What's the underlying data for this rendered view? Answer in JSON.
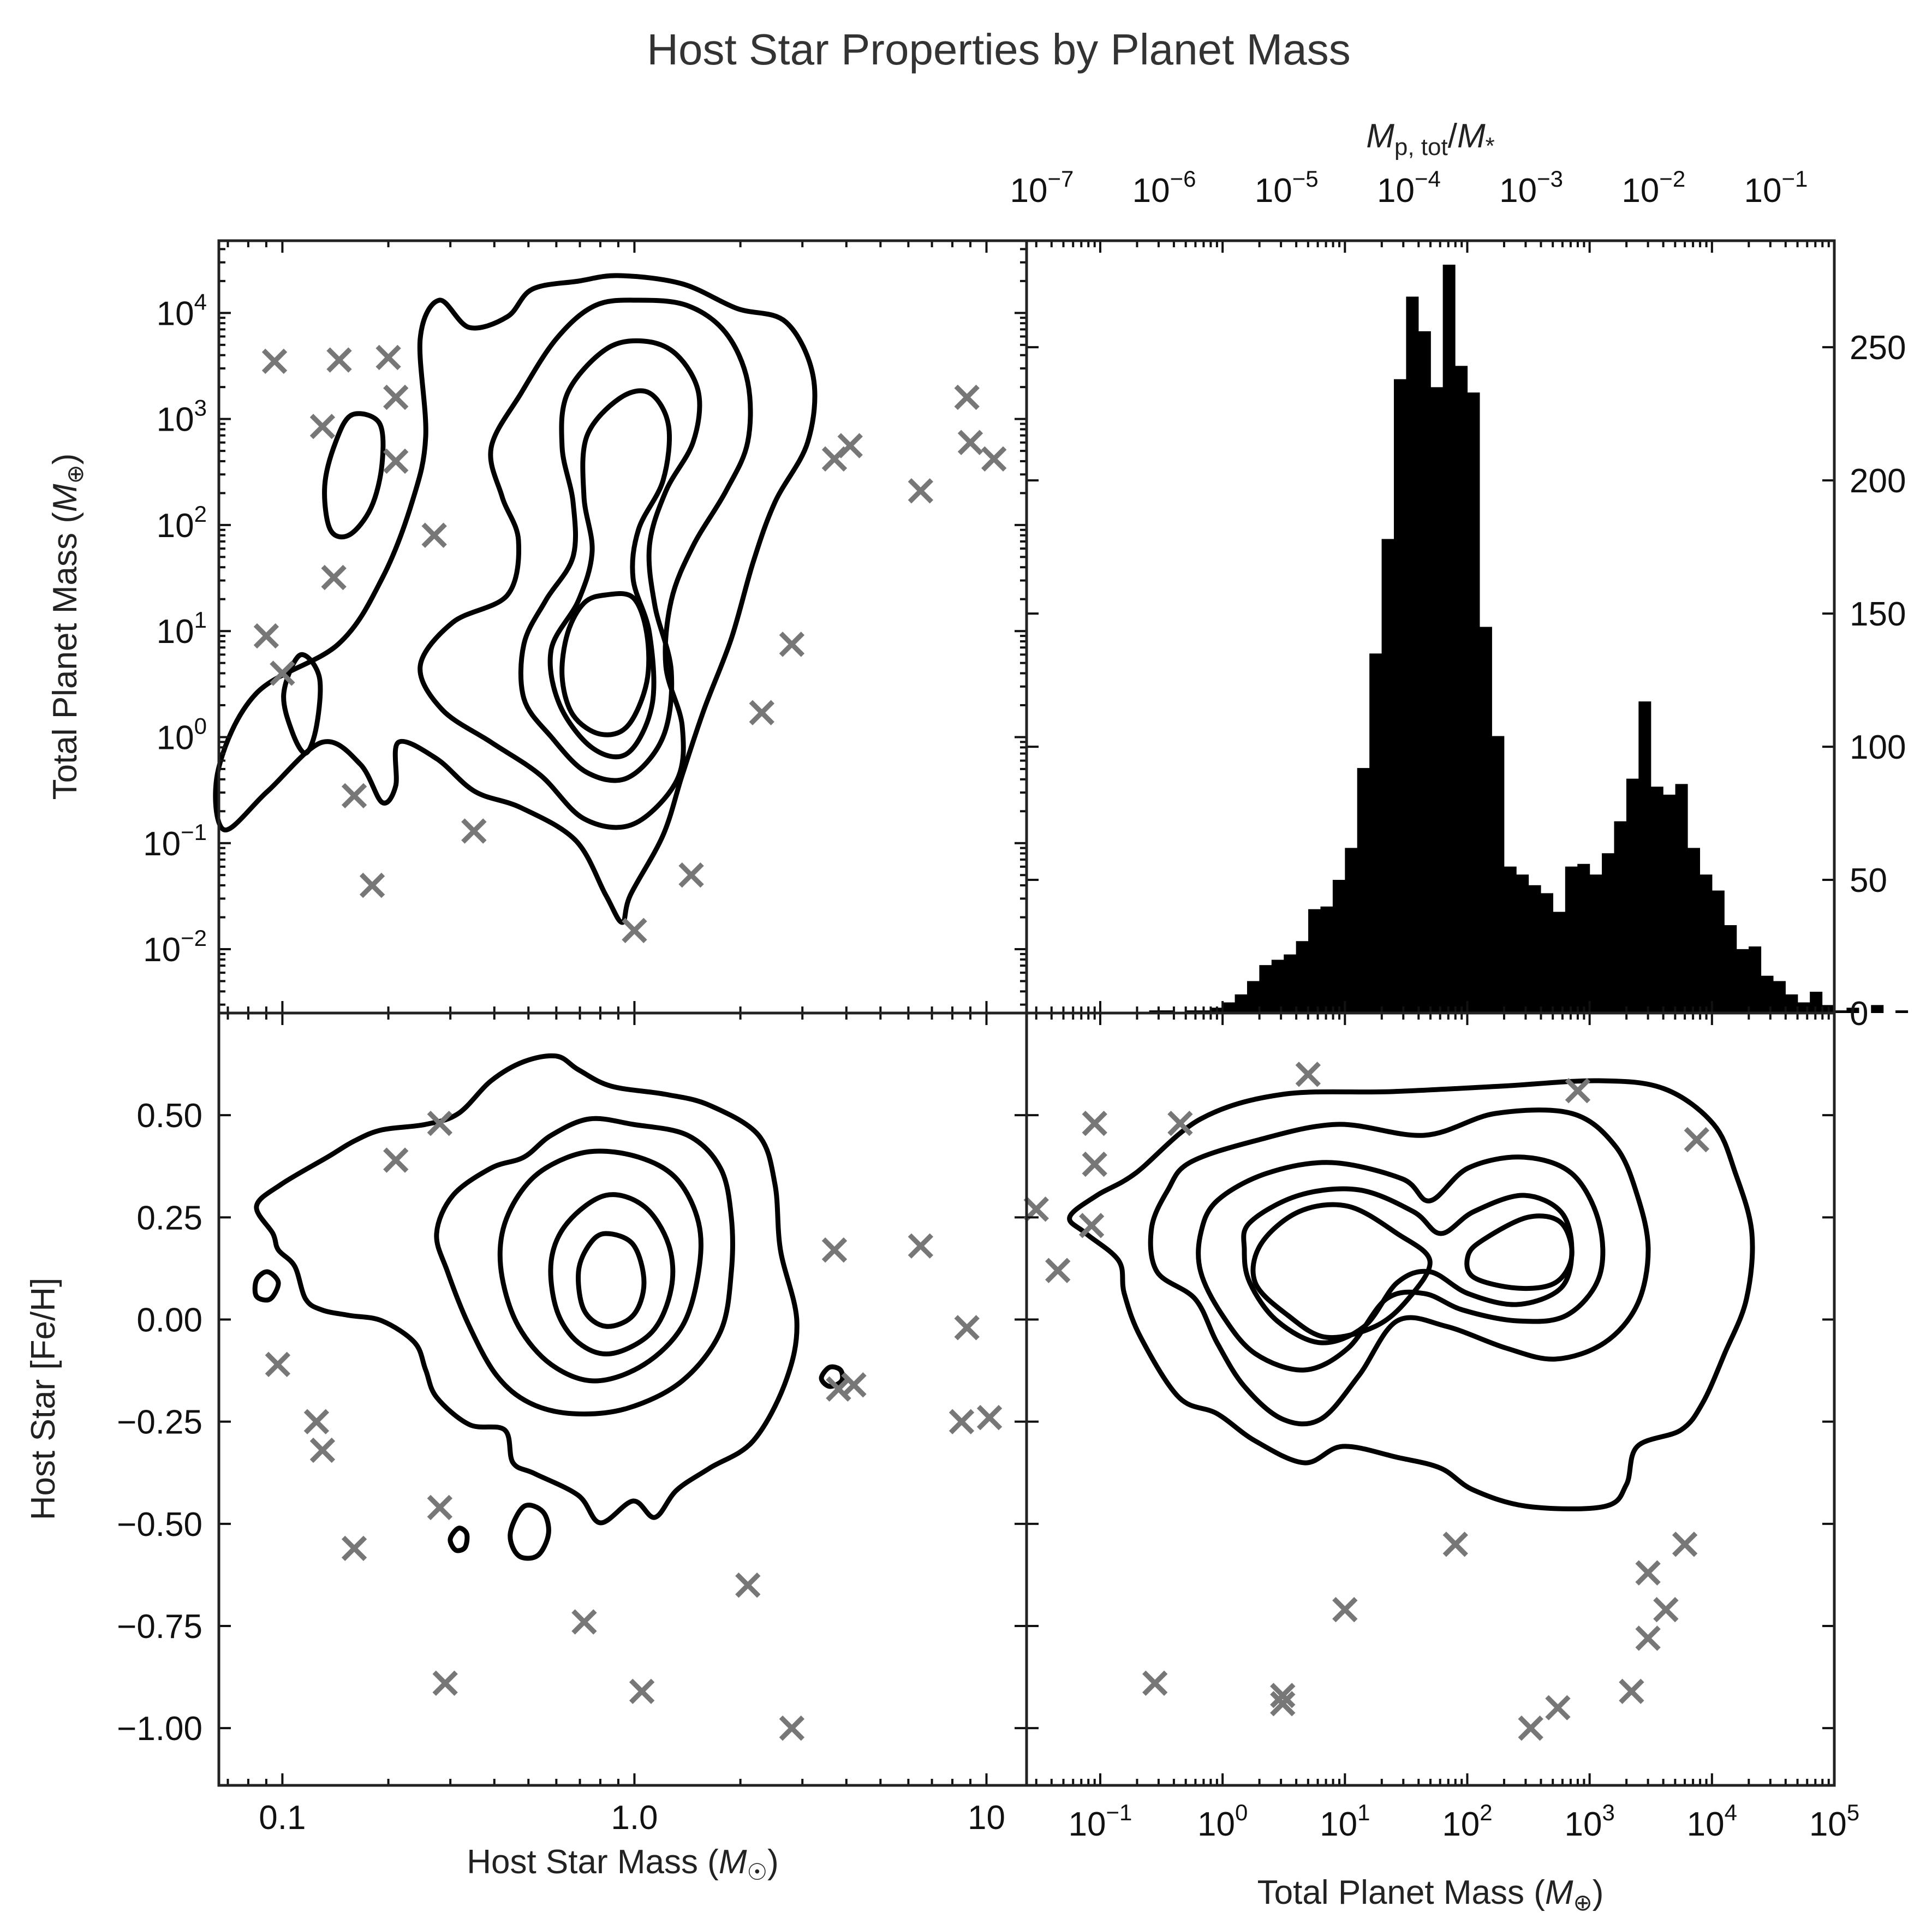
{
  "figure": {
    "title": "Host Star Properties by Planet Mass"
  },
  "chart_data": [
    {
      "id": "mass-mass",
      "type": "scatter",
      "panel": "top-left",
      "xlabel": "",
      "ylabel": "Total Planet Mass (M⊕)",
      "xscale": "log",
      "yscale": "log",
      "xlim": [
        0.066,
        13.0
      ],
      "ylim": [
        0.0025,
        48000
      ],
      "xticks": [
        {
          "value": 0.1,
          "base": "0.1",
          "exp": ""
        },
        {
          "value": 1.0,
          "base": "1.0",
          "exp": ""
        },
        {
          "value": 10,
          "base": "10",
          "exp": ""
        }
      ],
      "yticks": [
        {
          "value": 0.01,
          "base": "10",
          "exp": "−2"
        },
        {
          "value": 0.1,
          "base": "10",
          "exp": "−1"
        },
        {
          "value": 1,
          "base": "10",
          "exp": "0"
        },
        {
          "value": 10,
          "base": "10",
          "exp": "1"
        },
        {
          "value": 100,
          "base": "10",
          "exp": "2"
        },
        {
          "value": 1000,
          "base": "10",
          "exp": "3"
        },
        {
          "value": 10000,
          "base": "10",
          "exp": "4"
        }
      ],
      "points": [
        [
          0.095,
          3500
        ],
        [
          0.145,
          3600
        ],
        [
          0.2,
          3800
        ],
        [
          0.21,
          1600
        ],
        [
          0.13,
          850
        ],
        [
          0.21,
          400
        ],
        [
          0.27,
          80
        ],
        [
          0.14,
          32
        ],
        [
          0.09,
          9
        ],
        [
          0.1,
          4
        ],
        [
          0.16,
          0.28
        ],
        [
          0.18,
          0.04
        ],
        [
          0.35,
          0.13
        ],
        [
          1.0,
          0.015
        ],
        [
          1.45,
          0.05
        ],
        [
          2.3,
          1.7
        ],
        [
          2.8,
          7.5
        ],
        [
          3.7,
          420
        ],
        [
          4.1,
          560
        ],
        [
          6.5,
          210
        ],
        [
          8.8,
          1600
        ],
        [
          9.0,
          600
        ],
        [
          10.5,
          420
        ]
      ],
      "contours": 5
    },
    {
      "id": "planet-mass-hist",
      "type": "bar",
      "panel": "top-right",
      "xlabel": "",
      "ylabel": "",
      "xscale": "log",
      "xlim": [
        0.025,
        100000
      ],
      "ylim": [
        0,
        290
      ],
      "top_axis_label": "Mp,tot/M*",
      "top_xticks": [
        {
          "value": 1e-07,
          "base": "10",
          "exp": "−7"
        },
        {
          "value": 1e-06,
          "base": "10",
          "exp": "−6"
        },
        {
          "value": 1e-05,
          "base": "10",
          "exp": "−5"
        },
        {
          "value": 0.0001,
          "base": "10",
          "exp": "−4"
        },
        {
          "value": 0.001,
          "base": "10",
          "exp": "−3"
        },
        {
          "value": 0.01,
          "base": "10",
          "exp": "−2"
        },
        {
          "value": 0.1,
          "base": "10",
          "exp": "−1"
        }
      ],
      "yticks": [
        0,
        50,
        100,
        150,
        200,
        250
      ],
      "bin_start_log10": -0.6,
      "bin_width_log10": 0.1,
      "values": [
        1,
        1,
        0,
        1,
        1,
        2,
        4,
        7,
        12,
        18,
        20,
        22,
        27,
        39,
        40,
        50,
        62,
        92,
        135,
        178,
        238,
        269,
        256,
        235,
        281,
        243,
        233,
        145,
        104,
        55,
        52,
        48,
        45,
        38,
        55,
        56,
        52,
        60,
        72,
        88,
        117,
        85,
        82,
        86,
        62,
        52,
        46,
        33,
        24,
        25,
        14,
        12,
        7,
        4,
        8,
        3,
        1,
        2,
        0,
        3,
        0,
        1
      ]
    },
    {
      "id": "metallicity-star-mass",
      "type": "scatter",
      "panel": "bottom-left",
      "xlabel": "Host Star Mass (M☉)",
      "ylabel": "Host Star [Fe/H]",
      "xscale": "log",
      "yscale": "linear",
      "xlim": [
        0.066,
        13.0
      ],
      "ylim": [
        -1.14,
        0.75
      ],
      "xticks": [
        {
          "value": 0.1,
          "base": "0.1",
          "exp": ""
        },
        {
          "value": 1.0,
          "base": "1.0",
          "exp": ""
        },
        {
          "value": 10,
          "base": "10",
          "exp": ""
        }
      ],
      "yticks": [
        {
          "value": 0.5,
          "base": "0.50",
          "exp": ""
        },
        {
          "value": 0.25,
          "base": "0.25",
          "exp": ""
        },
        {
          "value": 0.0,
          "base": "0.00",
          "exp": ""
        },
        {
          "value": -0.25,
          "base": "−0.25",
          "exp": ""
        },
        {
          "value": -0.5,
          "base": "−0.50",
          "exp": ""
        },
        {
          "value": -0.75,
          "base": "−0.75",
          "exp": ""
        },
        {
          "value": -1.0,
          "base": "−1.00",
          "exp": ""
        }
      ],
      "points": [
        [
          0.28,
          0.48
        ],
        [
          0.21,
          0.39
        ],
        [
          3.7,
          0.17
        ],
        [
          6.5,
          0.18
        ],
        [
          0.097,
          -0.11
        ],
        [
          0.125,
          -0.25
        ],
        [
          0.13,
          -0.32
        ],
        [
          8.8,
          -0.02
        ],
        [
          3.8,
          -0.17
        ],
        [
          4.2,
          -0.16
        ],
        [
          8.5,
          -0.25
        ],
        [
          10.2,
          -0.24
        ],
        [
          0.16,
          -0.56
        ],
        [
          0.28,
          -0.46
        ],
        [
          2.1,
          -0.65
        ],
        [
          0.72,
          -0.74
        ],
        [
          0.29,
          -0.89
        ],
        [
          1.05,
          -0.91
        ],
        [
          2.8,
          -1.0
        ]
      ],
      "contours": 5
    },
    {
      "id": "metallicity-planet-mass",
      "type": "scatter",
      "panel": "bottom-right",
      "xlabel": "Total Planet Mass (M⊕)",
      "ylabel": "",
      "xscale": "log",
      "yscale": "linear",
      "xlim": [
        0.025,
        100000
      ],
      "ylim": [
        -1.14,
        0.75
      ],
      "xticks": [
        {
          "value": 0.1,
          "base": "10",
          "exp": "−1"
        },
        {
          "value": 1,
          "base": "10",
          "exp": "0"
        },
        {
          "value": 10,
          "base": "10",
          "exp": "1"
        },
        {
          "value": 100,
          "base": "10",
          "exp": "2"
        },
        {
          "value": 1000,
          "base": "10",
          "exp": "3"
        },
        {
          "value": 10000,
          "base": "10",
          "exp": "4"
        },
        {
          "value": 100000,
          "base": "10",
          "exp": "5"
        }
      ],
      "points": [
        [
          5,
          0.6
        ],
        [
          0.09,
          0.48
        ],
        [
          0.45,
          0.48
        ],
        [
          0.09,
          0.38
        ],
        [
          800,
          0.56
        ],
        [
          7500,
          0.44
        ],
        [
          0.03,
          0.27
        ],
        [
          0.085,
          0.23
        ],
        [
          0.045,
          0.12
        ],
        [
          80,
          -0.55
        ],
        [
          6000,
          -0.55
        ],
        [
          3000,
          -0.62
        ],
        [
          10,
          -0.71
        ],
        [
          4200,
          -0.71
        ],
        [
          3000,
          -0.78
        ],
        [
          0.28,
          -0.89
        ],
        [
          3.1,
          -0.92
        ],
        [
          2200,
          -0.91
        ],
        [
          3.1,
          -0.94
        ],
        [
          550,
          -0.95
        ],
        [
          330,
          -1.0
        ]
      ],
      "contours": 5
    }
  ]
}
